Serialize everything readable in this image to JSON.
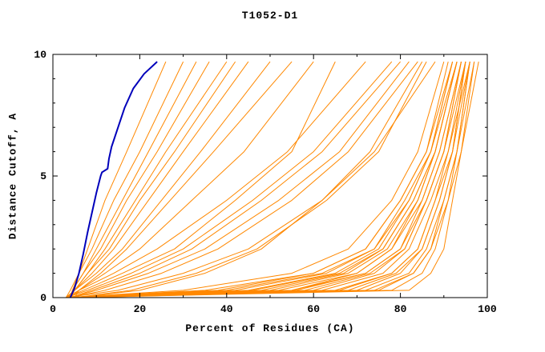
{
  "colors": {
    "curve": "#ff8800",
    "highlight": "#0000bb",
    "axis": "#000000",
    "background": "#ffffff"
  },
  "chart_data": {
    "type": "line",
    "title": "T1052-D1",
    "xlabel": "Percent of Residues (CA)",
    "ylabel": "Distance Cutoff, A",
    "xlim": [
      0,
      100
    ],
    "ylim": [
      0,
      10
    ],
    "x_ticks": [
      0,
      20,
      40,
      60,
      80,
      100
    ],
    "x_minor_ticks": [
      10,
      30,
      50,
      70,
      90
    ],
    "y_ticks": [
      0,
      5,
      10
    ],
    "y_minor_ticks": [
      1,
      2,
      3,
      4,
      6,
      7,
      8,
      9
    ],
    "legend": "none",
    "grid": false,
    "y_levels": [
      0,
      0.3,
      1,
      2,
      4,
      6,
      9.7
    ],
    "series": [
      {
        "x": [
          4,
          55,
          70,
          78,
          84,
          88,
          93
        ]
      },
      {
        "x": [
          3,
          60,
          74,
          81,
          86,
          90,
          94
        ]
      },
      {
        "x": [
          5,
          45,
          65,
          75,
          82,
          87,
          92
        ]
      },
      {
        "x": [
          4,
          70,
          80,
          85,
          89,
          92,
          95
        ]
      },
      {
        "x": [
          3,
          35,
          60,
          72,
          80,
          86,
          91
        ]
      },
      {
        "x": [
          4,
          65,
          78,
          84,
          88,
          91,
          96
        ]
      },
      {
        "x": [
          5,
          50,
          68,
          77,
          84,
          88,
          93
        ]
      },
      {
        "x": [
          3,
          75,
          83,
          87,
          90,
          93,
          97
        ]
      },
      {
        "x": [
          4,
          40,
          62,
          74,
          81,
          87,
          92
        ]
      },
      {
        "x": [
          5,
          55,
          72,
          80,
          85,
          89,
          94
        ]
      },
      {
        "x": [
          3,
          30,
          55,
          68,
          78,
          84,
          90
        ]
      },
      {
        "x": [
          4,
          68,
          79,
          85,
          89,
          92,
          95
        ]
      },
      {
        "x": [
          5,
          48,
          67,
          76,
          83,
          88,
          93
        ]
      },
      {
        "x": [
          3,
          72,
          82,
          86,
          90,
          93,
          96
        ]
      },
      {
        "x": [
          4,
          58,
          73,
          81,
          86,
          90,
          95
        ]
      },
      {
        "x": [
          5,
          42,
          63,
          74,
          82,
          87,
          93
        ]
      },
      {
        "x": [
          3,
          62,
          76,
          82,
          87,
          91,
          95
        ]
      },
      {
        "x": [
          4,
          52,
          70,
          78,
          85,
          89,
          94
        ]
      },
      {
        "x": [
          5,
          78,
          85,
          88,
          91,
          94,
          97
        ]
      },
      {
        "x": [
          3,
          38,
          60,
          72,
          80,
          86,
          92
        ]
      },
      {
        "x": [
          4,
          66,
          78,
          84,
          88,
          92,
          96
        ]
      },
      {
        "x": [
          5,
          46,
          66,
          76,
          83,
          88,
          93
        ]
      },
      {
        "x": [
          3,
          74,
          83,
          87,
          91,
          93,
          96
        ]
      },
      {
        "x": [
          4,
          56,
          72,
          80,
          86,
          90,
          94
        ]
      },
      {
        "x": [
          5,
          82,
          87,
          90,
          92,
          94,
          98
        ]
      },
      {
        "x": [
          3,
          15,
          30,
          45,
          62,
          74,
          88
        ]
      },
      {
        "x": [
          4,
          10,
          22,
          35,
          52,
          66,
          82
        ]
      },
      {
        "x": [
          5,
          18,
          33,
          47,
          63,
          75,
          86
        ]
      },
      {
        "x": [
          3,
          8,
          18,
          30,
          46,
          60,
          78
        ]
      },
      {
        "x": [
          4,
          12,
          25,
          38,
          55,
          68,
          84
        ]
      },
      {
        "x": [
          5,
          20,
          35,
          48,
          62,
          73,
          85
        ]
      },
      {
        "x": [
          3,
          6,
          14,
          24,
          40,
          54,
          72
        ]
      },
      {
        "x": [
          4,
          9,
          20,
          32,
          48,
          62,
          80
        ]
      },
      {
        "x": [
          3,
          5,
          9,
          14,
          22,
          30,
          45
        ]
      },
      {
        "x": [
          4,
          4.5,
          7,
          11,
          17,
          24,
          36
        ]
      },
      {
        "x": [
          3,
          5,
          8,
          12,
          19,
          26,
          40
        ]
      },
      {
        "x": [
          4,
          4.5,
          6,
          9,
          14,
          20,
          30
        ]
      },
      {
        "x": [
          3,
          5,
          10,
          16,
          25,
          34,
          50
        ]
      },
      {
        "x": [
          4,
          4.5,
          7,
          10,
          16,
          22,
          33
        ]
      },
      {
        "x": [
          5,
          6,
          11,
          17,
          27,
          37,
          55
        ]
      },
      {
        "x": [
          3,
          4,
          6,
          8,
          12,
          17,
          26
        ]
      },
      {
        "x": [
          4,
          5,
          8,
          13,
          20,
          28,
          42
        ]
      },
      {
        "x": [
          3,
          7,
          16,
          28,
          42,
          55,
          65
        ]
      },
      {
        "x": [
          4,
          6,
          12,
          20,
          32,
          44,
          60
        ]
      }
    ],
    "highlight_series": {
      "name": "highlighted-model",
      "color": "#0000bb",
      "points": [
        [
          4,
          0
        ],
        [
          5,
          0.4
        ],
        [
          6,
          1
        ],
        [
          7,
          1.8
        ],
        [
          8,
          2.7
        ],
        [
          9,
          3.5
        ],
        [
          10,
          4.3
        ],
        [
          11,
          5
        ],
        [
          11.3,
          5.15
        ],
        [
          12.6,
          5.3
        ],
        [
          12.9,
          5.7
        ],
        [
          13.5,
          6.2
        ],
        [
          15,
          7
        ],
        [
          16.5,
          7.8
        ],
        [
          18.5,
          8.6
        ],
        [
          21,
          9.2
        ],
        [
          24,
          9.7
        ]
      ]
    }
  }
}
